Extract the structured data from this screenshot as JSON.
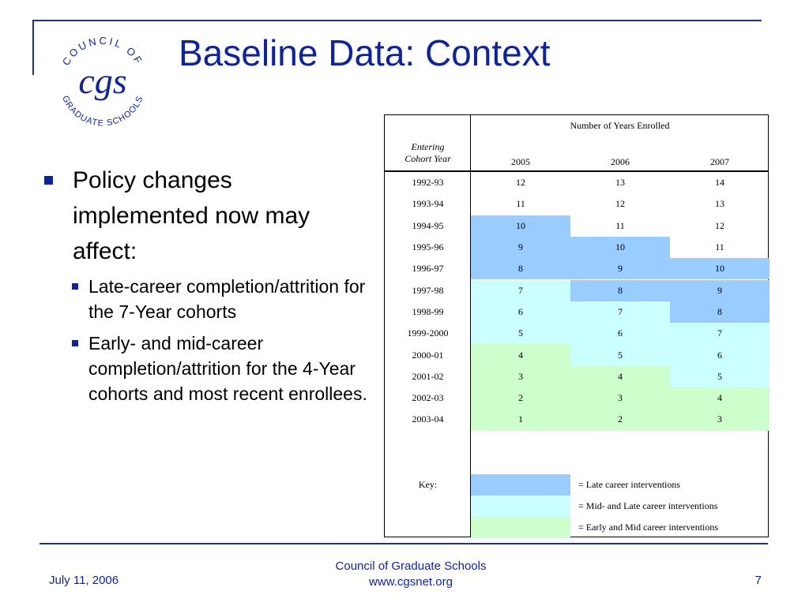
{
  "slide": {
    "title": "Baseline Data: Context",
    "logo": {
      "monogram": "cgs",
      "arc_top": "COUNCIL OF",
      "arc_bottom": "GRADUATE SCHOOLS"
    },
    "bullets": [
      {
        "text": "Policy changes implemented now may affect:",
        "sub": [
          "Late-career completion/attrition for the 7-Year cohorts",
          "Early- and mid-career completion/attrition for the 4-Year cohorts and most recent enrollees."
        ]
      }
    ],
    "footer": {
      "date": "July 11, 2006",
      "org": "Council of Graduate Schools",
      "url": "www.cgsnet.org",
      "page": "7"
    }
  },
  "table": {
    "group_header": "Number of Years Enrolled",
    "row_header": "Entering Cohort Year",
    "columns": [
      "2005",
      "2006",
      "2007"
    ],
    "rows": [
      {
        "cohort": "1992-93",
        "values": [
          "12",
          "13",
          "14"
        ],
        "shade": [
          "none",
          "none",
          "none"
        ]
      },
      {
        "cohort": "1993-94",
        "values": [
          "11",
          "12",
          "13"
        ],
        "shade": [
          "none",
          "none",
          "none"
        ]
      },
      {
        "cohort": "1994-95",
        "values": [
          "10",
          "11",
          "12"
        ],
        "shade": [
          "late",
          "none",
          "none"
        ]
      },
      {
        "cohort": "1995-96",
        "values": [
          "9",
          "10",
          "11"
        ],
        "shade": [
          "late",
          "late",
          "none"
        ]
      },
      {
        "cohort": "1996-97",
        "values": [
          "8",
          "9",
          "10"
        ],
        "shade": [
          "late",
          "late",
          "late"
        ]
      },
      {
        "cohort": "1997-98",
        "values": [
          "7",
          "8",
          "9"
        ],
        "shade": [
          "mid",
          "late",
          "late"
        ]
      },
      {
        "cohort": "1998-99",
        "values": [
          "6",
          "7",
          "8"
        ],
        "shade": [
          "mid",
          "mid",
          "late"
        ]
      },
      {
        "cohort": "1999-2000",
        "values": [
          "5",
          "6",
          "7"
        ],
        "shade": [
          "mid",
          "mid",
          "mid"
        ]
      },
      {
        "cohort": "2000-01",
        "values": [
          "4",
          "5",
          "6"
        ],
        "shade": [
          "early",
          "mid",
          "mid"
        ]
      },
      {
        "cohort": "2001-02",
        "values": [
          "3",
          "4",
          "5"
        ],
        "shade": [
          "early",
          "early",
          "mid"
        ]
      },
      {
        "cohort": "2002-03",
        "values": [
          "2",
          "3",
          "4"
        ],
        "shade": [
          "early",
          "early",
          "early"
        ]
      },
      {
        "cohort": "2003-04",
        "values": [
          "1",
          "2",
          "3"
        ],
        "shade": [
          "early",
          "early",
          "early"
        ]
      }
    ],
    "key_label": "Key:",
    "key": [
      {
        "shade": "late",
        "label": "= Late career interventions"
      },
      {
        "shade": "mid",
        "label": "= Mid- and Late career interventions"
      },
      {
        "shade": "early",
        "label": "= Early and Mid career interventions"
      }
    ],
    "colors": {
      "late": "#99ccff",
      "mid": "#ccffff",
      "early": "#ccffcc",
      "accent": "#10249a"
    }
  }
}
